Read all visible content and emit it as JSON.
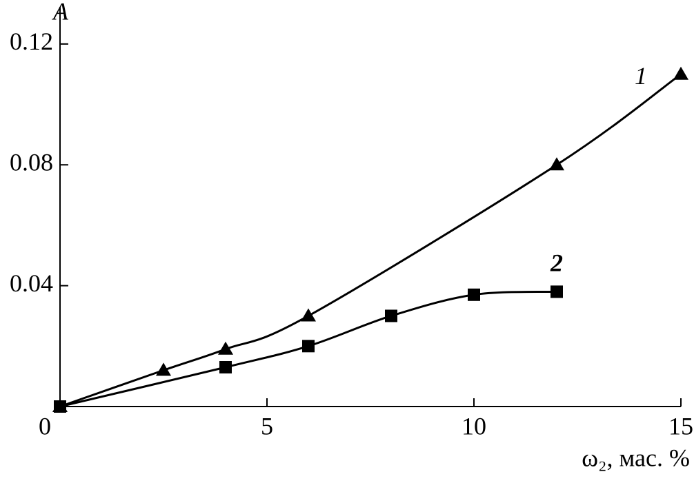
{
  "chart_data": {
    "type": "line",
    "y_label": "A",
    "x_label": "ω₂, мас. %",
    "xlim": [
      0,
      15
    ],
    "xticks": [
      0,
      5,
      10,
      15
    ],
    "ylim": [
      0,
      0.13
    ],
    "yticks": [
      0.04,
      0.08,
      0.12
    ],
    "series": [
      {
        "name": "1",
        "color": "#000000",
        "marker": "triangle",
        "x": [
          0,
          2.5,
          4,
          6,
          12,
          15
        ],
        "values": [
          0,
          0.012,
          0.019,
          0.03,
          0.08,
          0.11
        ]
      },
      {
        "name": "2",
        "color": "#000000",
        "marker": "square",
        "x": [
          0,
          4,
          6,
          8,
          10,
          12
        ],
        "values": [
          0,
          0.013,
          0.02,
          0.03,
          0.037,
          0.038
        ]
      }
    ]
  }
}
